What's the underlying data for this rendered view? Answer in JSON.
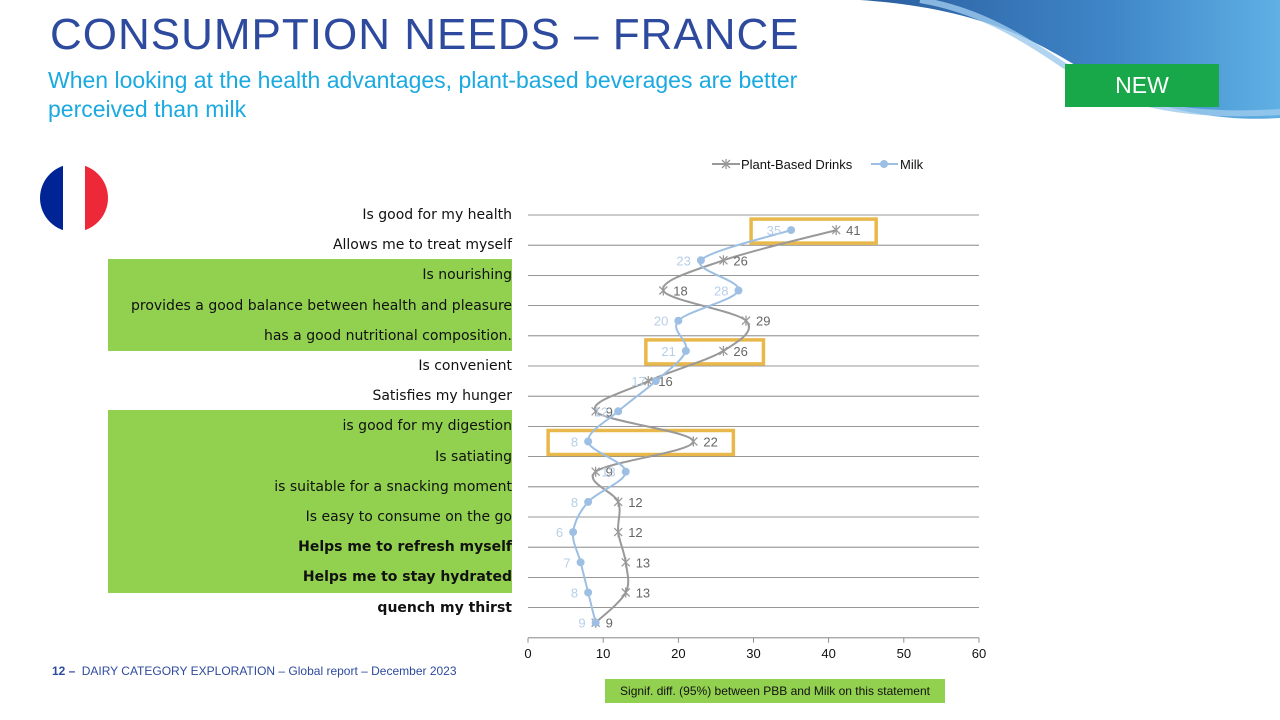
{
  "header": {
    "title": "CONSUMPTION NEEDS – FRANCE",
    "subtitle": "When looking at the health advantages, plant-based beverages are better perceived than milk",
    "badge": "NEW"
  },
  "flag": {
    "colors": [
      "#002395",
      "#ffffff",
      "#ed2939"
    ]
  },
  "colors": {
    "title": "#2e4a9e",
    "subtitle": "#1aa9e0",
    "badge_bg": "#18a84a",
    "green_highlight": "#92d050",
    "box_highlight": "#e8b84a",
    "pbb_series": "#999999",
    "milk_series": "#9dbfe3"
  },
  "statements": [
    {
      "label": "Is good for my health",
      "green": false,
      "bold": false
    },
    {
      "label": "Allows me to treat myself",
      "green": false,
      "bold": false
    },
    {
      "label": "Is nourishing",
      "green": true,
      "bold": false
    },
    {
      "label": "provides a good balance between health and pleasure",
      "green": true,
      "bold": false
    },
    {
      "label": "has a good nutritional composition.",
      "green": true,
      "bold": false
    },
    {
      "label": "Is convenient",
      "green": false,
      "bold": false
    },
    {
      "label": "Satisfies my hunger",
      "green": false,
      "bold": false
    },
    {
      "label": "is good for my digestion",
      "green": true,
      "bold": false
    },
    {
      "label": "Is satiating",
      "green": true,
      "bold": false
    },
    {
      "label": "is suitable for a snacking moment",
      "green": true,
      "bold": false
    },
    {
      "label": "Is easy to consume on the go",
      "green": true,
      "bold": false
    },
    {
      "label": "Helps me to refresh myself",
      "green": true,
      "bold": true
    },
    {
      "label": "Helps me to stay hydrated",
      "green": true,
      "bold": true
    },
    {
      "label": "quench my thirst",
      "green": false,
      "bold": true
    }
  ],
  "chart_data": {
    "type": "line",
    "orientation": "horizontal-values",
    "categories": [
      "Is good for my health",
      "Allows me to treat myself",
      "Is nourishing",
      "provides a good balance between health and pleasure",
      "has a good nutritional composition.",
      "Is convenient",
      "Satisfies my hunger",
      "is good for my digestion",
      "Is satiating",
      "is suitable for a snacking moment",
      "Is easy to consume on the go",
      "Helps me to refresh myself",
      "Helps me to stay hydrated",
      "quench my thirst"
    ],
    "series": [
      {
        "name": "Plant-Based Drinks",
        "marker": "x",
        "values": [
          41,
          26,
          18,
          29,
          26,
          16,
          9,
          22,
          9,
          12,
          12,
          13,
          13,
          9
        ]
      },
      {
        "name": "Milk",
        "marker": "circle",
        "values": [
          35,
          23,
          28,
          20,
          21,
          17,
          12,
          8,
          13,
          8,
          6,
          7,
          8,
          9
        ]
      }
    ],
    "significant_rows": [
      0,
      4,
      7
    ],
    "xlim": [
      0,
      60
    ],
    "xticks": [
      0,
      10,
      20,
      30,
      40,
      50,
      60
    ],
    "legend_position": "top",
    "grid": "horizontal separators"
  },
  "footer": {
    "page": "12 –",
    "text": "DAIRY CATEGORY EXPLORATION – Global report – December 2023",
    "sig_note": "Signif. diff. (95%) between PBB and Milk on this statement"
  }
}
